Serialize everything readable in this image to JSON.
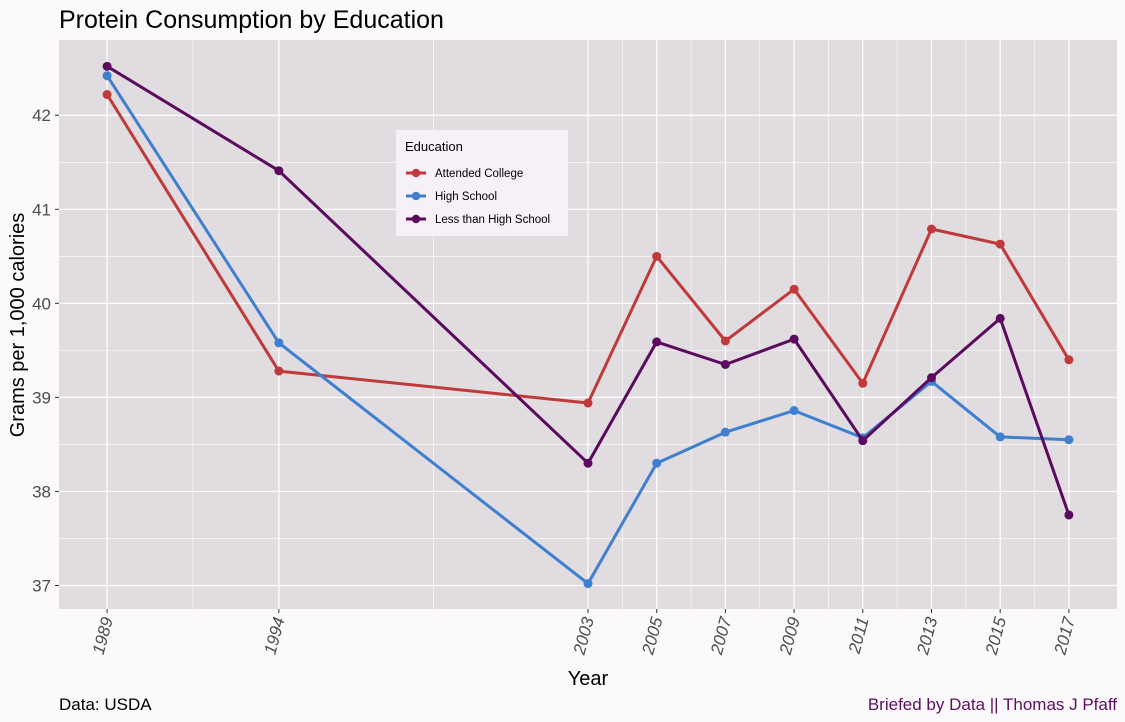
{
  "chart_data": {
    "type": "line",
    "title": "Protein Consumption by Education",
    "xlabel": "Year",
    "ylabel": "Grams per 1,000 calories",
    "x": [
      1989,
      1994,
      2003,
      2005,
      2007,
      2009,
      2011,
      2013,
      2015,
      2017
    ],
    "x_tick_labels": [
      "1989",
      "1994",
      "2003",
      "2005",
      "2007",
      "2009",
      "2011",
      "2013",
      "2015",
      "2017"
    ],
    "y_ticks": [
      37,
      38,
      39,
      40,
      41,
      42
    ],
    "y_tick_labels": [
      "37",
      "38",
      "39",
      "40",
      "41",
      "42"
    ],
    "xlim": [
      1987.6,
      2018.4
    ],
    "ylim": [
      36.75,
      42.8
    ],
    "legend_title": "Education",
    "legend_position": "inside-top-center",
    "grid": true,
    "series": [
      {
        "name": "Attended College",
        "color": "#c0393b",
        "values": [
          42.22,
          39.28,
          38.94,
          40.5,
          39.6,
          40.15,
          39.15,
          40.79,
          40.63,
          39.4
        ]
      },
      {
        "name": "High School",
        "color": "#3f7fcf",
        "values": [
          42.42,
          39.58,
          37.02,
          38.3,
          38.63,
          38.86,
          38.57,
          39.17,
          38.58,
          38.55
        ]
      },
      {
        "name": "Less than High School",
        "color": "#5b0a5e",
        "values": [
          42.52,
          41.41,
          38.3,
          39.59,
          39.35,
          39.62,
          38.54,
          39.21,
          39.84,
          37.75
        ]
      }
    ]
  },
  "caption": {
    "left": "Data: USDA",
    "right": "Briefed by Data || Thomas J Pfaff"
  },
  "colors": {
    "page_background": "#fbf9fb",
    "panel_background": "#e0dce0",
    "grid": "#ffffff"
  }
}
